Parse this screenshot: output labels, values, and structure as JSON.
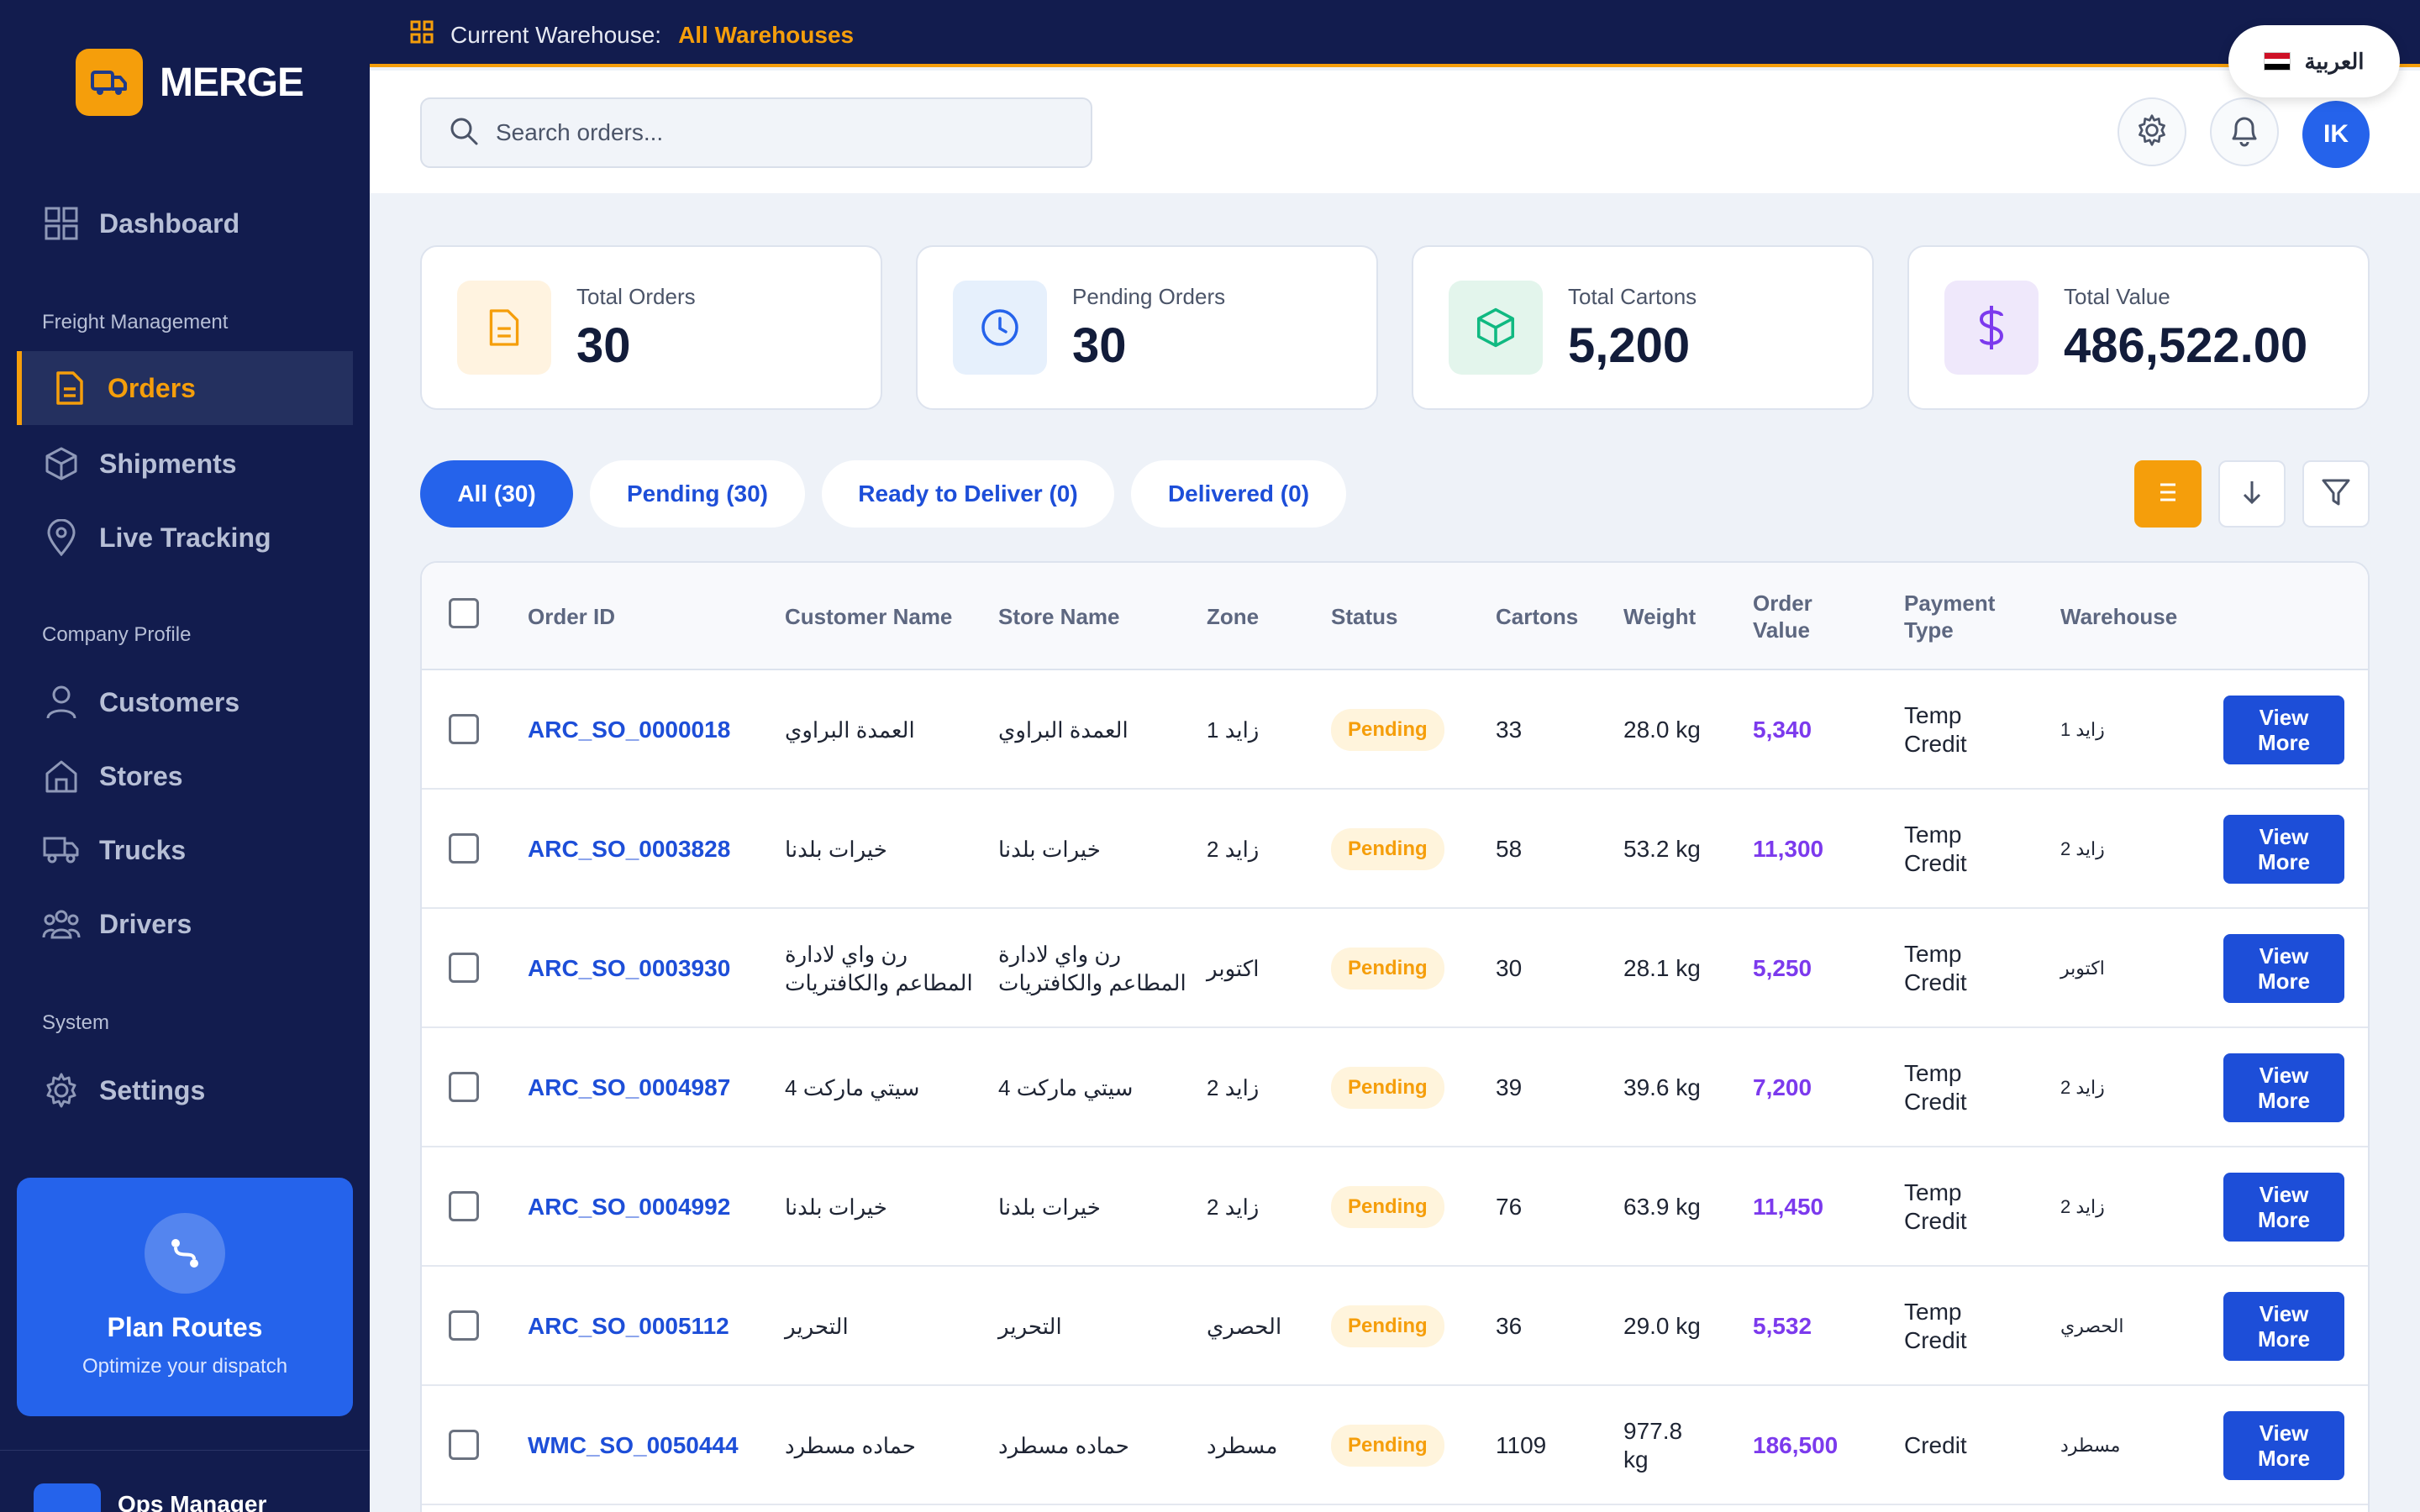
{
  "app": {
    "logo_text": "MERGE"
  },
  "topbar": {
    "warehouse_label": "Current Warehouse:",
    "warehouse_value": "All Warehouses",
    "language": "العربية"
  },
  "sidebar": {
    "dashboard": "Dashboard",
    "section_freight": "Freight Management",
    "orders": "Orders",
    "shipments": "Shipments",
    "live_tracking": "Live Tracking",
    "section_company": "Company Profile",
    "customers": "Customers",
    "stores": "Stores",
    "trucks": "Trucks",
    "drivers": "Drivers",
    "section_system": "System",
    "settings": "Settings",
    "plan_title": "Plan Routes",
    "plan_subtitle": "Optimize your dispatch",
    "user_name": "Ops Manager"
  },
  "header": {
    "search_placeholder": "Search orders...",
    "avatar_initials": "IK"
  },
  "stats": [
    {
      "label": "Total Orders",
      "value": "30"
    },
    {
      "label": "Pending Orders",
      "value": "30"
    },
    {
      "label": "Total Cartons",
      "value": "5,200"
    },
    {
      "label": "Total Value",
      "value": "486,522.00"
    }
  ],
  "filters": {
    "all": "All (30)",
    "pending": "Pending (30)",
    "ready": "Ready to Deliver (0)",
    "delivered": "Delivered (0)"
  },
  "table": {
    "headers": {
      "order_id": "Order ID",
      "customer": "Customer Name",
      "store": "Store Name",
      "zone": "Zone",
      "status": "Status",
      "cartons": "Cartons",
      "weight": "Weight",
      "order_value_1": "Order",
      "order_value_2": "Value",
      "payment_1": "Payment",
      "payment_2": "Type",
      "warehouse": "Warehouse"
    },
    "view_more_1": "View",
    "view_more_2": "More",
    "rows": [
      {
        "order_id": "ARC_SO_0000018",
        "customer_1": "العمدة البراوي",
        "customer_2": "",
        "store_1": "العمدة البراوي",
        "store_2": "",
        "zone": "زايد 1",
        "status": "Pending",
        "cartons": "33",
        "weight_1": "28.0 kg",
        "weight_2": "",
        "value": "5,340",
        "payment_1": "Temp",
        "payment_2": "Credit",
        "warehouse": "زايد 1"
      },
      {
        "order_id": "ARC_SO_0003828",
        "customer_1": "خيرات بلدنا",
        "customer_2": "",
        "store_1": "خيرات بلدنا",
        "store_2": "",
        "zone": "زايد 2",
        "status": "Pending",
        "cartons": "58",
        "weight_1": "53.2 kg",
        "weight_2": "",
        "value": "11,300",
        "payment_1": "Temp",
        "payment_2": "Credit",
        "warehouse": "زايد 2"
      },
      {
        "order_id": "ARC_SO_0003930",
        "customer_1": "رن واي لادارة",
        "customer_2": "المطاعم والكافتريات",
        "store_1": "رن واي لادارة",
        "store_2": "المطاعم والكافتريات",
        "zone": "اكتوبر",
        "status": "Pending",
        "cartons": "30",
        "weight_1": "28.1 kg",
        "weight_2": "",
        "value": "5,250",
        "payment_1": "Temp",
        "payment_2": "Credit",
        "warehouse": "اكتوبر"
      },
      {
        "order_id": "ARC_SO_0004987",
        "customer_1": "سيتي ماركت 4",
        "customer_2": "",
        "store_1": "سيتي ماركت 4",
        "store_2": "",
        "zone": "زايد 2",
        "status": "Pending",
        "cartons": "39",
        "weight_1": "39.6 kg",
        "weight_2": "",
        "value": "7,200",
        "payment_1": "Temp",
        "payment_2": "Credit",
        "warehouse": "زايد 2"
      },
      {
        "order_id": "ARC_SO_0004992",
        "customer_1": "خيرات بلدنا",
        "customer_2": "",
        "store_1": "خيرات بلدنا",
        "store_2": "",
        "zone": "زايد 2",
        "status": "Pending",
        "cartons": "76",
        "weight_1": "63.9 kg",
        "weight_2": "",
        "value": "11,450",
        "payment_1": "Temp",
        "payment_2": "Credit",
        "warehouse": "زايد 2"
      },
      {
        "order_id": "ARC_SO_0005112",
        "customer_1": "التحرير",
        "customer_2": "",
        "store_1": "التحرير",
        "store_2": "",
        "zone": "الحصري",
        "status": "Pending",
        "cartons": "36",
        "weight_1": "29.0 kg",
        "weight_2": "",
        "value": "5,532",
        "payment_1": "Temp",
        "payment_2": "Credit",
        "warehouse": "الحصري"
      },
      {
        "order_id": "WMC_SO_0050444",
        "customer_1": "حماده مسطرد",
        "customer_2": "",
        "store_1": "حماده مسطرد",
        "store_2": "",
        "zone": "مسطرد",
        "status": "Pending",
        "cartons": "1109",
        "weight_1": "977.8",
        "weight_2": "kg",
        "value": "186,500",
        "payment_1": "Credit",
        "payment_2": "",
        "warehouse": "مسطرد"
      }
    ]
  },
  "colors": {
    "sidebar_bg": "#121c4e",
    "accent_orange": "#f59e0b",
    "primary_blue": "#2563eb",
    "value_purple": "#7c3aed"
  }
}
